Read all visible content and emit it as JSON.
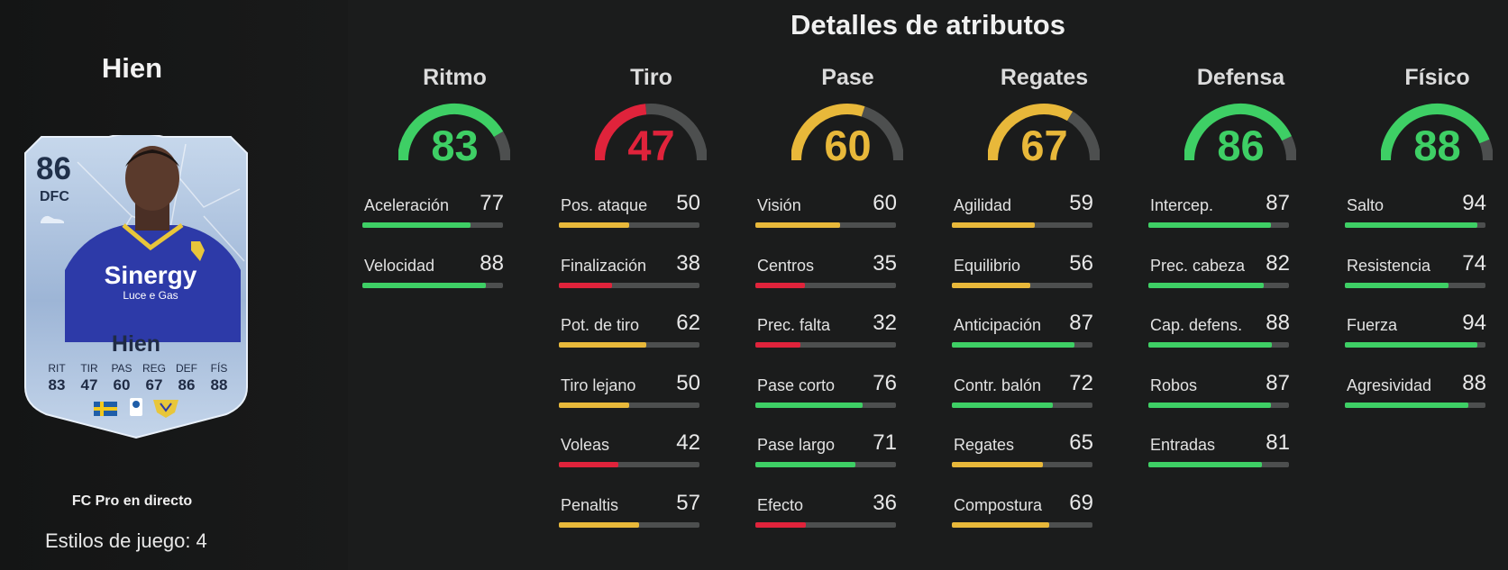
{
  "player": {
    "name": "Hien",
    "rating": "86",
    "position": "DFC",
    "card_name": "Hien",
    "mini_stats": [
      {
        "abbr": "RIT",
        "value": "83"
      },
      {
        "abbr": "TIR",
        "value": "47"
      },
      {
        "abbr": "PAS",
        "value": "60"
      },
      {
        "abbr": "REG",
        "value": "67"
      },
      {
        "abbr": "DEF",
        "value": "86"
      },
      {
        "abbr": "FÍS",
        "value": "88"
      }
    ],
    "sponsor_text": "Sinergy",
    "sponsor_sub": "Luce e Gas",
    "program": "FC Pro en directo",
    "playstyles_label": "Estilos de juego:",
    "playstyles_count": "4"
  },
  "section_title": "Detalles de atributos",
  "colors": {
    "green": "#3ecf65",
    "yellow": "#e8b83a",
    "red": "#e0233b",
    "track": "#4d4f4f"
  },
  "categories": [
    {
      "name": "Ritmo",
      "value": 83,
      "stats": [
        {
          "name": "Aceleración",
          "value": 77
        },
        {
          "name": "Velocidad",
          "value": 88
        }
      ]
    },
    {
      "name": "Tiro",
      "value": 47,
      "stats": [
        {
          "name": "Pos. ataque",
          "value": 50
        },
        {
          "name": "Finalización",
          "value": 38
        },
        {
          "name": "Pot. de tiro",
          "value": 62
        },
        {
          "name": "Tiro lejano",
          "value": 50
        },
        {
          "name": "Voleas",
          "value": 42
        },
        {
          "name": "Penaltis",
          "value": 57
        }
      ]
    },
    {
      "name": "Pase",
      "value": 60,
      "stats": [
        {
          "name": "Visión",
          "value": 60
        },
        {
          "name": "Centros",
          "value": 35
        },
        {
          "name": "Prec. falta",
          "value": 32
        },
        {
          "name": "Pase corto",
          "value": 76
        },
        {
          "name": "Pase largo",
          "value": 71
        },
        {
          "name": "Efecto",
          "value": 36
        }
      ]
    },
    {
      "name": "Regates",
      "value": 67,
      "stats": [
        {
          "name": "Agilidad",
          "value": 59
        },
        {
          "name": "Equilibrio",
          "value": 56
        },
        {
          "name": "Anticipación",
          "value": 87
        },
        {
          "name": "Contr. balón",
          "value": 72
        },
        {
          "name": "Regates",
          "value": 65
        },
        {
          "name": "Compostura",
          "value": 69
        }
      ]
    },
    {
      "name": "Defensa",
      "value": 86,
      "stats": [
        {
          "name": "Intercep.",
          "value": 87
        },
        {
          "name": "Prec. cabeza",
          "value": 82
        },
        {
          "name": "Cap. defens.",
          "value": 88
        },
        {
          "name": "Robos",
          "value": 87
        },
        {
          "name": "Entradas",
          "value": 81
        }
      ]
    },
    {
      "name": "Físico",
      "value": 88,
      "stats": [
        {
          "name": "Salto",
          "value": 94
        },
        {
          "name": "Resistencia",
          "value": 74
        },
        {
          "name": "Fuerza",
          "value": 94
        },
        {
          "name": "Agresividad",
          "value": 88
        }
      ]
    }
  ]
}
